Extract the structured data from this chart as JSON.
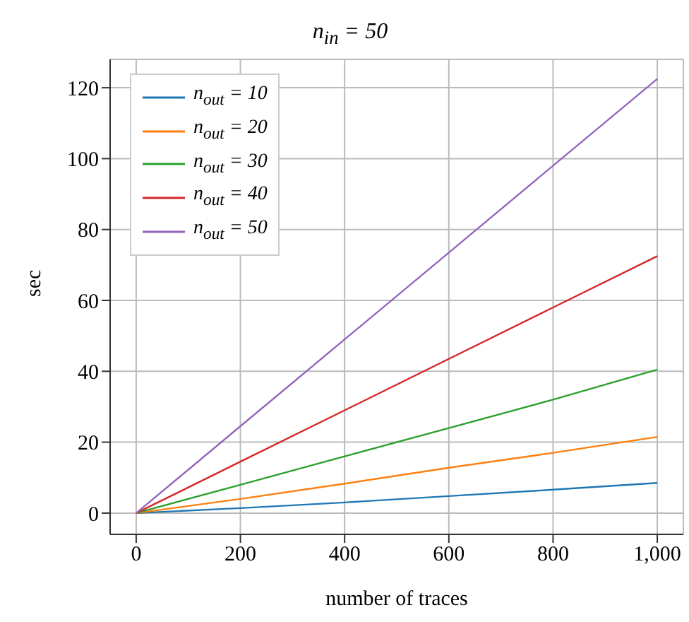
{
  "chart_data": {
    "type": "line",
    "title": "n$_{in}$ = 50",
    "xlabel": "number of traces",
    "ylabel": "sec",
    "x": [
      0,
      200,
      400,
      600,
      800,
      1000
    ],
    "series": [
      {
        "name": "n$_{out}$ = 10",
        "color": "#1f77b4",
        "values": [
          0,
          1.4,
          3,
          4.8,
          6.6,
          8.5
        ]
      },
      {
        "name": "n$_{out}$ = 20",
        "color": "#ff7f0e",
        "values": [
          0,
          4,
          8.3,
          12.8,
          17,
          21.5
        ]
      },
      {
        "name": "n$_{out}$ = 30",
        "color": "#2ca02c",
        "values": [
          0,
          8,
          16,
          24,
          32,
          40.5
        ]
      },
      {
        "name": "n$_{out}$ = 40",
        "color": "#d62728",
        "values": [
          0,
          14.5,
          29,
          43.5,
          58,
          72.5
        ]
      },
      {
        "name": "n$_{out}$ = 50",
        "color": "#9467bd",
        "values": [
          0,
          24.5,
          49,
          73.5,
          98,
          122.5
        ]
      }
    ],
    "xlim": [
      -50,
      1050
    ],
    "xticks": [
      0,
      200,
      400,
      600,
      800,
      {
        "value": 1000,
        "label": "1,000"
      }
    ],
    "ylim": [
      -6,
      128
    ],
    "yticks": [
      0,
      20,
      40,
      60,
      80,
      100,
      120
    ],
    "grid": true,
    "legend": "top left",
    "marker": "none",
    "line_style": "solid"
  }
}
